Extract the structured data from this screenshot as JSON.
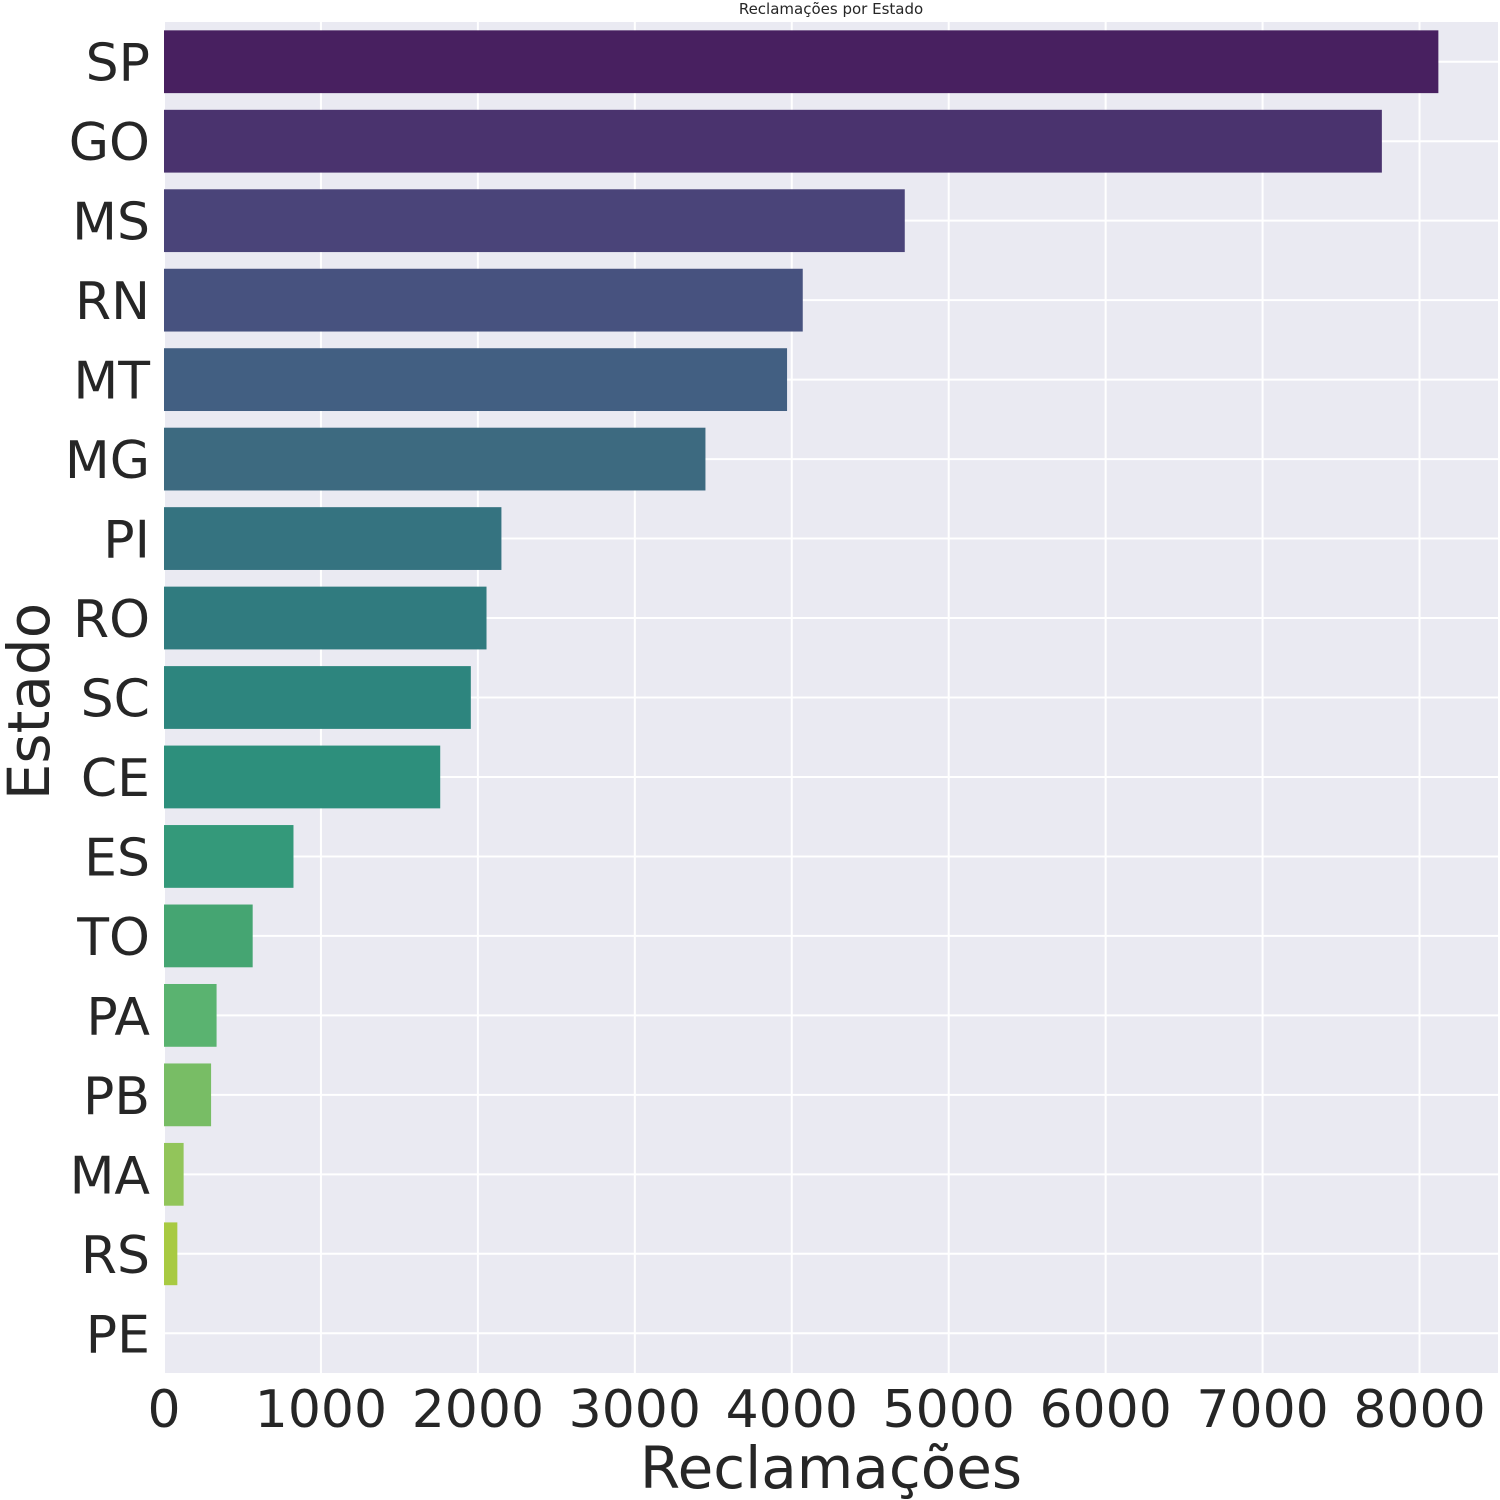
{
  "chart_data": {
    "type": "bar",
    "orientation": "horizontal",
    "title": "Reclamações por Estado",
    "xlabel": "Reclamações",
    "ylabel": "Estado",
    "xlim": [
      0,
      8500
    ],
    "xticks": [
      0,
      1000,
      2000,
      3000,
      4000,
      5000,
      6000,
      7000,
      8000
    ],
    "grid": true,
    "legend": "none",
    "categories": [
      "SP",
      "GO",
      "MS",
      "RN",
      "MT",
      "MG",
      "PI",
      "RO",
      "SC",
      "CE",
      "ES",
      "TO",
      "PA",
      "PB",
      "MA",
      "RS",
      "PE"
    ],
    "values": [
      8120,
      7760,
      4720,
      4070,
      3970,
      3450,
      2150,
      2055,
      1955,
      1760,
      825,
      565,
      335,
      300,
      125,
      85,
      0
    ],
    "colors": [
      "#482060",
      "#4a336e",
      "#4a4479",
      "#47527f",
      "#425f82",
      "#3d6a80",
      "#357380",
      "#307b7f",
      "#2d857e",
      "#2d8f7c",
      "#34997a",
      "#45a572",
      "#5ab370",
      "#78bd65",
      "#92c55a",
      "#a8ca42",
      "#c0d02e"
    ],
    "style": {
      "background": "#eaeaf2",
      "grid_color": "#ffffff",
      "text_color": "#262626"
    }
  }
}
